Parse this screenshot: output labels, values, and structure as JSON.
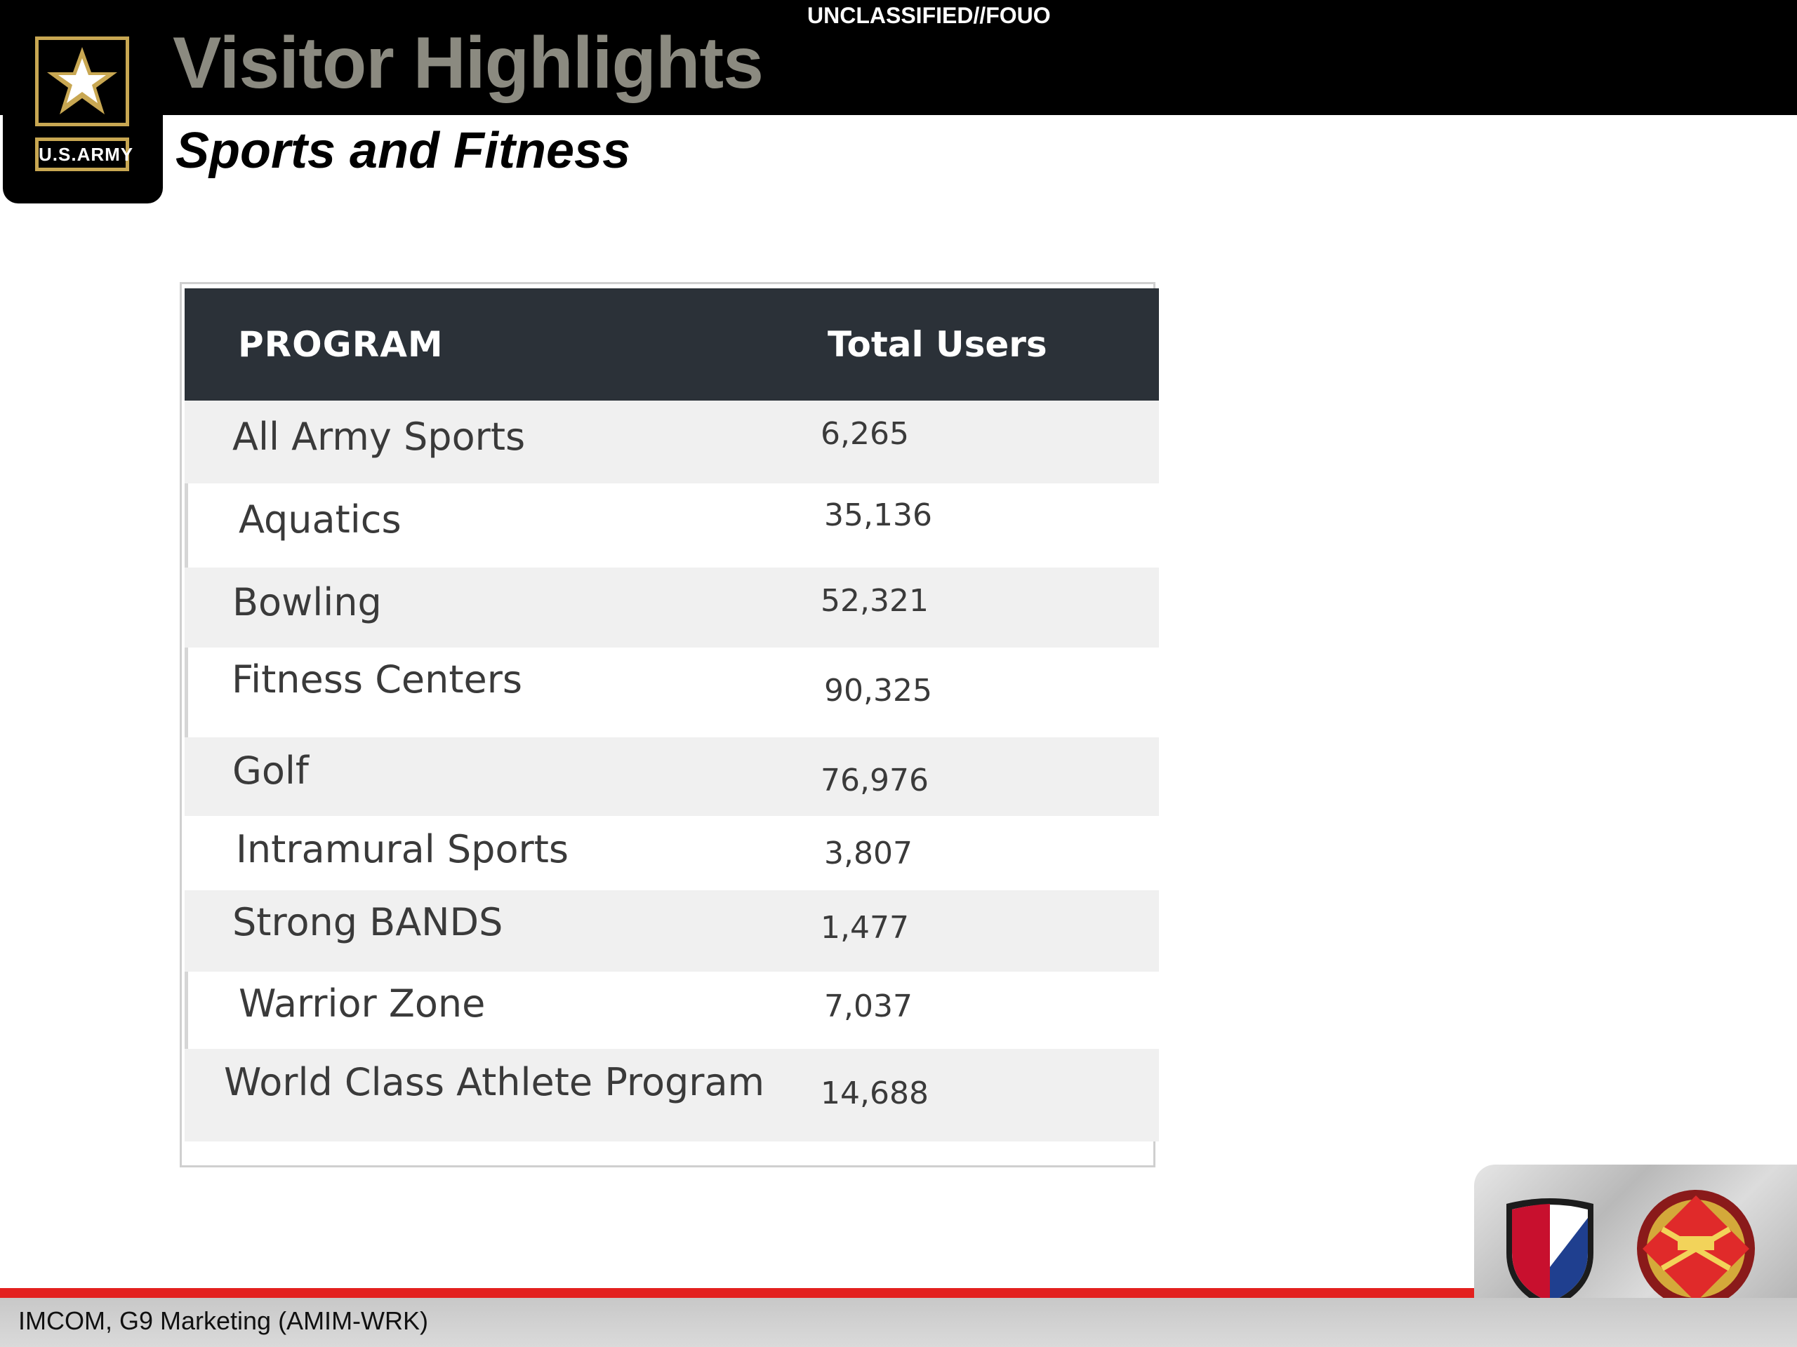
{
  "classification": "UNCLASSIFIED//FOUO",
  "header": {
    "title": "Visitor Highlights",
    "subtitle": "Sports and Fitness",
    "logo_text": "U.S.ARMY"
  },
  "table": {
    "columns": [
      "PROGRAM",
      "Total Users"
    ],
    "rows": [
      {
        "program": "All Army Sports",
        "users": "6,265"
      },
      {
        "program": "Aquatics",
        "users": "35,136"
      },
      {
        "program": "Bowling",
        "users": "52,321"
      },
      {
        "program": "Fitness Centers",
        "users": "90,325"
      },
      {
        "program": "Golf",
        "users": "76,976"
      },
      {
        "program": "Intramural Sports",
        "users": "3,807"
      },
      {
        "program": "Strong BANDS",
        "users": "1,477"
      },
      {
        "program": "Warrior Zone",
        "users": "7,037"
      },
      {
        "program": "World Class Athlete Program",
        "users": "14,688"
      }
    ]
  },
  "footer": {
    "text": "IMCOM, G9 Marketing (AMIM-WRK)"
  },
  "colors": {
    "header_bg": "#000000",
    "title": "#8b8a80",
    "gold": "#c8a752",
    "table_head": "#2b3138",
    "row_alt": "#f0f0f0",
    "footer_red": "#e3211f"
  },
  "icons": [
    "army-star-logo-icon",
    "amc-shield-icon",
    "imcom-crest-icon"
  ]
}
